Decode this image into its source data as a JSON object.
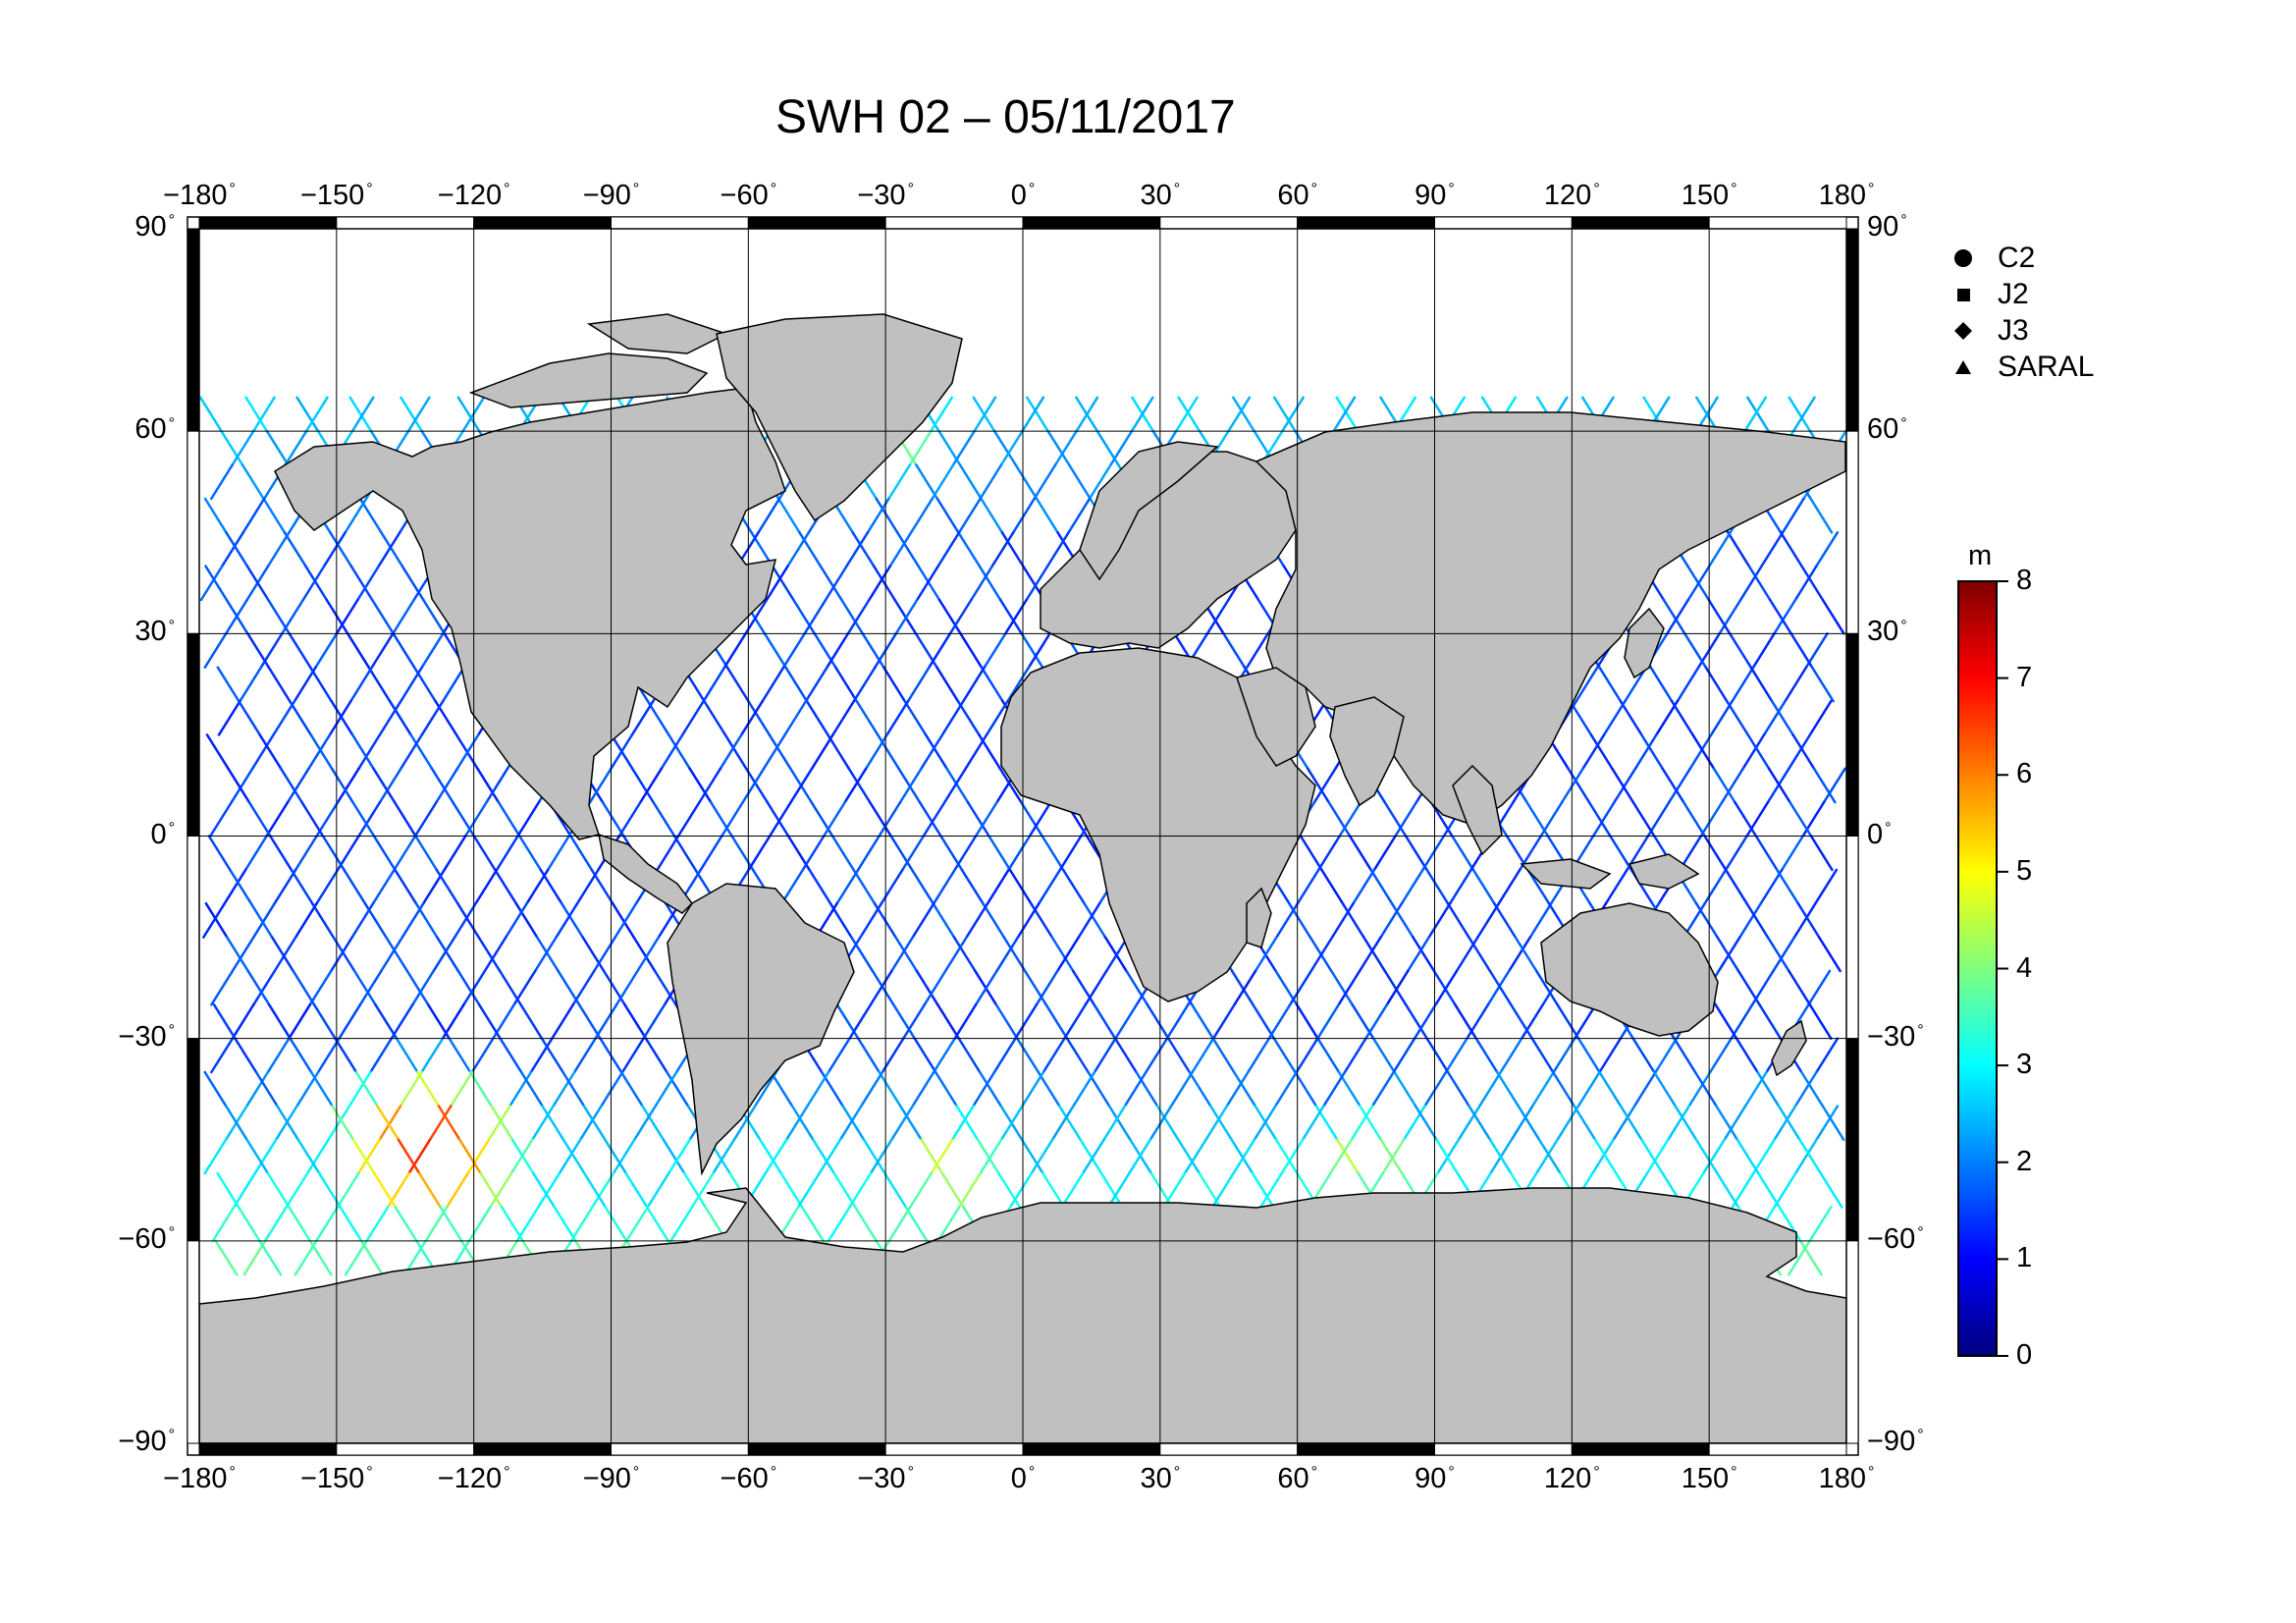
{
  "title": "SWH 02 – 05/11/2017",
  "axes": {
    "lon_labels": [
      "−180",
      "−150",
      "−120",
      "−90",
      "−60",
      "−30",
      "0",
      "30",
      "60",
      "90",
      "120",
      "150",
      "180"
    ],
    "lat_labels": [
      "90",
      "60",
      "30",
      "0",
      "−30",
      "−60",
      "−90"
    ],
    "degree_symbol": "°"
  },
  "legend": [
    {
      "symbol": "circle",
      "label": "C2"
    },
    {
      "symbol": "square",
      "label": "J2"
    },
    {
      "symbol": "diamond",
      "label": "J3"
    },
    {
      "symbol": "triangle",
      "label": "SARAL"
    }
  ],
  "colorbar": {
    "unit": "m",
    "min": 0,
    "max": 8,
    "ticks": [
      "0",
      "1",
      "2",
      "3",
      "4",
      "5",
      "6",
      "7",
      "8"
    ],
    "colormap": "jet"
  },
  "colors": {
    "land": "#c0c0c0",
    "ocean": "#ffffff",
    "grid": "#000000",
    "frame": "#000000"
  },
  "map": {
    "projection": "equirectangular",
    "lon_range": [
      -180,
      180
    ],
    "lat_range": [
      -90,
      90
    ],
    "track_coverage_lat": [
      -65,
      65
    ]
  }
}
